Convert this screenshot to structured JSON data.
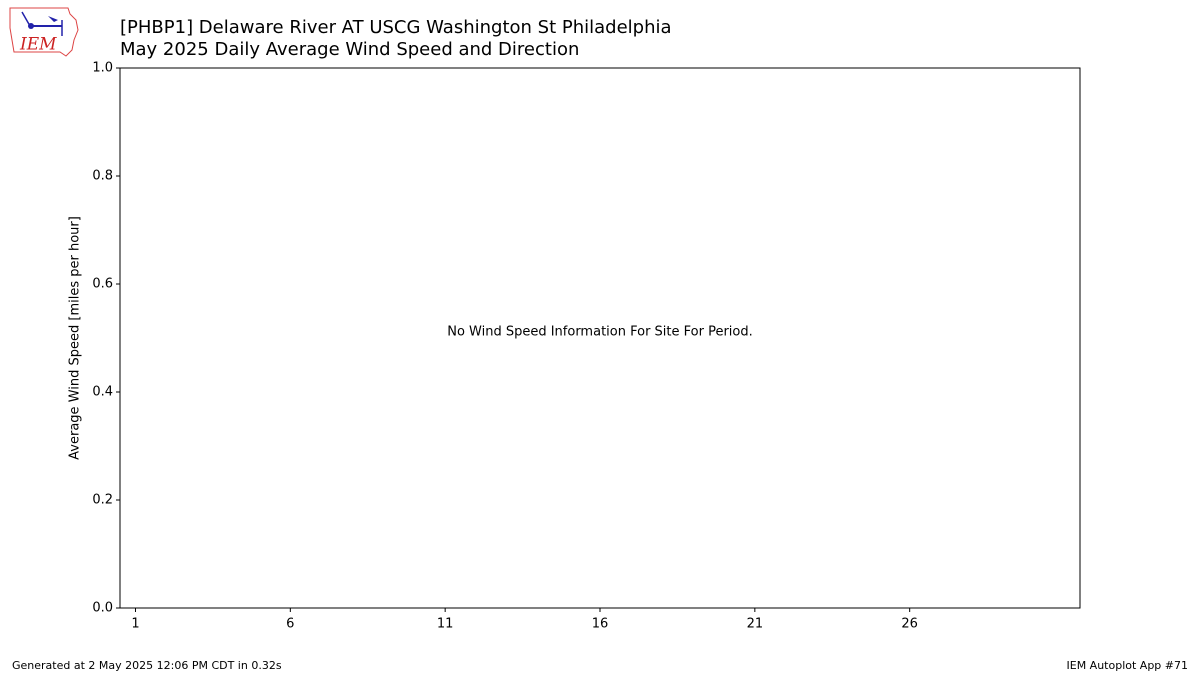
{
  "logo": {
    "text": "IEM"
  },
  "chart_data": {
    "type": "bar",
    "title": "[PHBP1] Delaware River  AT USCG Washington St Philadelphia",
    "subtitle": "May 2025 Daily Average Wind Speed and Direction",
    "y_label": "Average Wind Speed [miles per hour]",
    "annotation": "No Wind Speed Information For Site For Period.",
    "xlim": [
      0.5,
      31.5
    ],
    "xticks": [
      1,
      6,
      11,
      16,
      21,
      26
    ],
    "ylim": [
      0,
      1
    ],
    "yticks": [
      {
        "value": 0,
        "label": "0.0"
      },
      {
        "value": 0.2,
        "label": "0.2"
      },
      {
        "value": 0.4,
        "label": "0.4"
      },
      {
        "value": 0.6,
        "label": "0.6"
      },
      {
        "value": 0.8,
        "label": "0.8"
      },
      {
        "value": 1,
        "label": "1.0"
      }
    ]
  },
  "footer": {
    "left": "Generated at 2 May 2025 12:06 PM CDT in 0.32s",
    "right": "IEM Autoplot App #71"
  }
}
